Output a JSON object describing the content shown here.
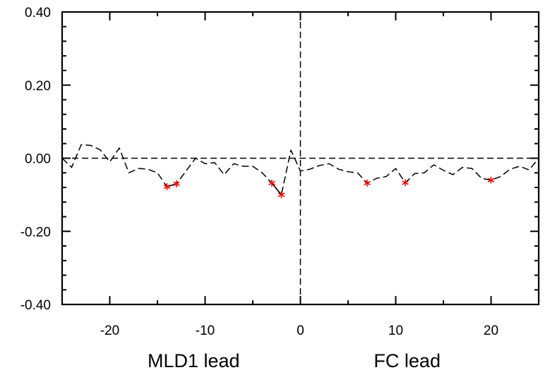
{
  "chart_data": {
    "type": "line",
    "title": "",
    "xlabel_left": "MLD1 lead",
    "xlabel_right": "FC lead",
    "xlim": [
      -25,
      25
    ],
    "ylim": [
      -0.4,
      0.4
    ],
    "x_ticks": [
      -20,
      -10,
      0,
      10,
      20
    ],
    "x_tick_labels": [
      "-20",
      "-10",
      "0",
      "10",
      "20"
    ],
    "y_ticks": [
      -0.4,
      -0.2,
      0.0,
      0.2,
      0.4
    ],
    "y_tick_labels": [
      "-0.40",
      "-0.20",
      "0.00",
      "0.20",
      "0.40"
    ],
    "zero_lines": true,
    "series": [
      {
        "line_style": "dashed",
        "color": "#000000",
        "x": [
          -25,
          -24,
          -23,
          -22,
          -21,
          -20,
          -19,
          -18,
          -17,
          -16,
          -15,
          -14,
          -13,
          -12,
          -11,
          -10,
          -9,
          -8,
          -7,
          -6,
          -5,
          -4,
          -3,
          -2,
          -1,
          0,
          1,
          2,
          3,
          4,
          5,
          6,
          7,
          8,
          9,
          10,
          11,
          12,
          13,
          14,
          15,
          16,
          17,
          18,
          19,
          20,
          21,
          22,
          23,
          24,
          25
        ],
        "y": [
          0.0,
          -0.025,
          0.037,
          0.035,
          0.023,
          -0.01,
          0.028,
          -0.04,
          -0.028,
          -0.03,
          -0.04,
          -0.078,
          -0.07,
          -0.035,
          0.0,
          -0.015,
          -0.012,
          -0.045,
          -0.015,
          -0.022,
          -0.022,
          -0.04,
          -0.068,
          -0.1,
          0.022,
          -0.035,
          -0.03,
          -0.02,
          -0.015,
          -0.03,
          -0.037,
          -0.04,
          -0.068,
          -0.055,
          -0.05,
          -0.028,
          -0.067,
          -0.042,
          -0.04,
          -0.018,
          -0.033,
          -0.045,
          -0.025,
          -0.028,
          -0.055,
          -0.06,
          -0.05,
          -0.03,
          -0.022,
          -0.032,
          0.0
        ]
      }
    ],
    "significant_x": [
      -14,
      -13,
      -3,
      -2,
      7,
      11,
      20
    ],
    "significant_marker_color": "#ff0000",
    "solid_segments": [
      [
        -14,
        -13
      ],
      [
        -3,
        -2
      ]
    ]
  }
}
